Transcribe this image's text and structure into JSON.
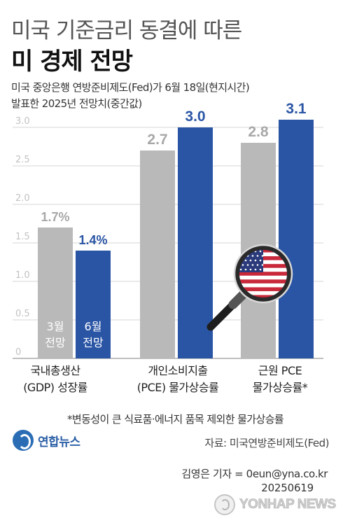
{
  "header": {
    "title_line1": "미국 기준금리 동결에 따른",
    "title_line2": "미 경제 전망",
    "subtitle_line1": "미국 중앙은행 연방준비제도(Fed)가 6월 18일(현지시간)",
    "subtitle_line2": "발표한 2025년 전망치(중간값)"
  },
  "chart_data": {
    "type": "bar",
    "ylim": [
      0,
      3.0
    ],
    "yticks": [
      "0",
      "0.5",
      "1.0",
      "1.5",
      "2.0",
      "2.5",
      "3.0"
    ],
    "categories": [
      [
        "국내총생산",
        "(GDP) 성장률"
      ],
      [
        "개인소비지출",
        "(PCE) 물가상승률"
      ],
      [
        "근원 PCE",
        "물가상승률*"
      ]
    ],
    "series": [
      {
        "name": "3월 전망",
        "color": "#b9b9b9",
        "labels": [
          "1.7%",
          "2.7",
          "2.8"
        ],
        "values": [
          1.7,
          2.7,
          2.8
        ]
      },
      {
        "name": "6월 전망",
        "color": "#2a55a5",
        "labels": [
          "1.4%",
          "3.0",
          "3.1"
        ],
        "values": [
          1.4,
          3.0,
          3.1
        ]
      }
    ],
    "series_label_lines": [
      [
        "3월",
        "전망"
      ],
      [
        "6월",
        "전망"
      ]
    ],
    "grid": true
  },
  "footnote": "*변동성이 큰 식료품·에너지 품목 제외한 물가상승률",
  "source": "자료: 미국연방준비제도(Fed)",
  "logo_text": "연합뉴스",
  "byline": "김영은 기자 = 0eun@yna.co.kr",
  "date": "20250619",
  "watermark": "YONHAP NEWS",
  "icons": {
    "magnifier": "magnifier-with-us-flag-icon"
  }
}
